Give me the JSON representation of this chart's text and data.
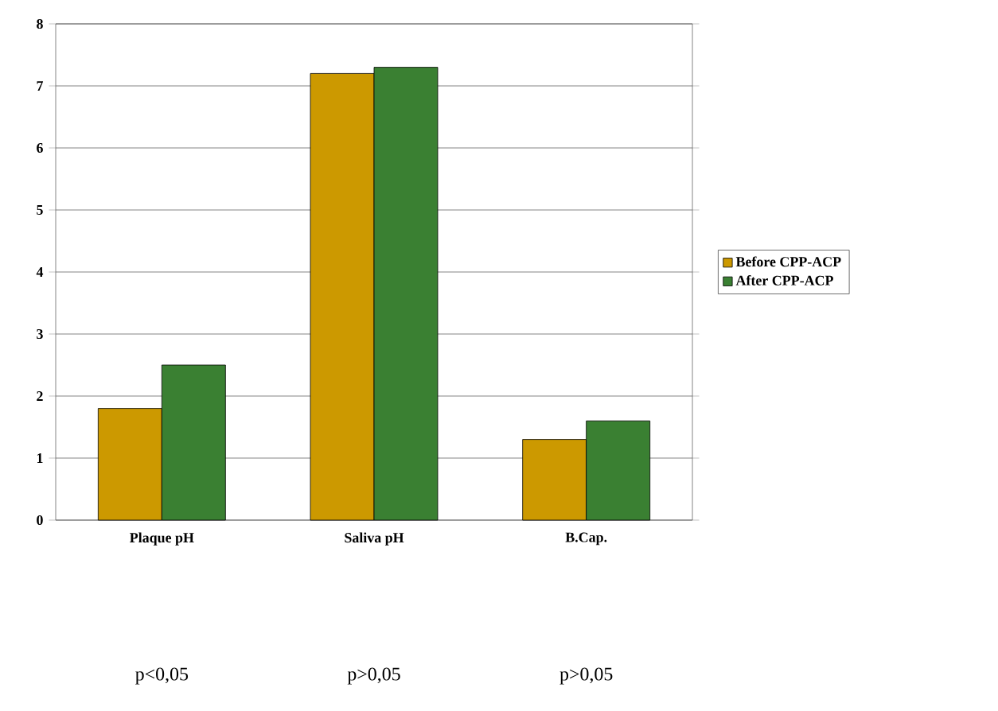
{
  "chart_data": {
    "type": "bar",
    "categories": [
      "Plaque pH",
      "Saliva pH",
      "B.Cap."
    ],
    "series": [
      {
        "name": "Before CPP-ACP",
        "color": "#cc9900",
        "values": [
          1.8,
          7.2,
          1.3
        ]
      },
      {
        "name": "After CPP-ACP",
        "color": "#3a8032",
        "values": [
          2.5,
          7.3,
          1.6
        ]
      }
    ],
    "ylim": [
      0,
      8
    ],
    "yticks": [
      0,
      1,
      2,
      3,
      4,
      5,
      6,
      7,
      8
    ],
    "grid": "y",
    "legend": "right",
    "annotations": [
      "p<0,05",
      "p>0,05",
      "p>0,05"
    ]
  }
}
